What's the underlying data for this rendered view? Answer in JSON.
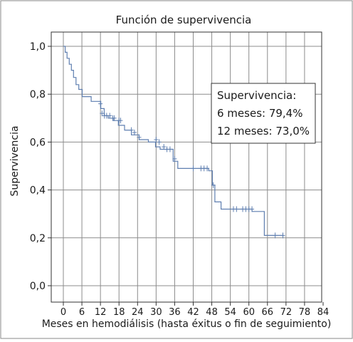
{
  "chart_data": {
    "type": "line",
    "title": "Función de supervivencia",
    "xlabel": "Meses en hemodiálisis (hasta éxitus o fin de seguimiento)",
    "ylabel": "Supervivencia",
    "xlim": [
      0,
      84
    ],
    "ylim": [
      0.0,
      1.0
    ],
    "x_ticks": [
      0,
      6,
      12,
      18,
      24,
      30,
      36,
      42,
      48,
      54,
      60,
      66,
      72,
      78,
      84
    ],
    "x_tick_labels": [
      "0",
      "6",
      "12",
      "18",
      "24",
      "30",
      "36",
      "42",
      "48",
      "54",
      "60",
      "66",
      "72",
      "78",
      "84"
    ],
    "y_ticks": [
      0.0,
      0.2,
      0.4,
      0.6,
      0.8,
      1.0
    ],
    "y_tick_labels": [
      "0,0",
      "0,2",
      "0,4",
      "0,6",
      "0,8",
      "1,0"
    ],
    "grid": true,
    "legend": "none",
    "series": [
      {
        "style": "step",
        "color": "#5f7fb0",
        "x": [
          0,
          0.6,
          1.2,
          1.9,
          2.6,
          3.3,
          4.1,
          5.0,
          6.1,
          9.0,
          12.1,
          13.2,
          14.5,
          16.1,
          17.8,
          19.8,
          22.0,
          24.5,
          27.5,
          29.8,
          31.3,
          35.5,
          37.0,
          42.0,
          47.0,
          48.2,
          49.0,
          51.0,
          56.5,
          60.5,
          61.0,
          65.0,
          66.1,
          71.0
        ],
        "y": [
          1.0,
          0.975,
          0.95,
          0.925,
          0.9,
          0.87,
          0.84,
          0.82,
          0.79,
          0.77,
          0.74,
          0.71,
          0.7,
          0.69,
          0.67,
          0.65,
          0.63,
          0.61,
          0.6,
          0.58,
          0.57,
          0.52,
          0.49,
          0.49,
          0.48,
          0.42,
          0.35,
          0.32,
          0.32,
          0.32,
          0.31,
          0.21,
          0.21,
          0.21
        ]
      }
    ],
    "censored": {
      "x": [
        12.0,
        12.5,
        13.3,
        14.0,
        15.0,
        16.0,
        16.5,
        18.0,
        18.5,
        22.0,
        23.0,
        24.5,
        30.0,
        31.0,
        32.5,
        33.5,
        34.5,
        36.0,
        42.0,
        44.5,
        45.5,
        46.5,
        48.5,
        55.0,
        56.0,
        58.0,
        59.0,
        60.0,
        61.0,
        68.5,
        71.0
      ],
      "y": [
        0.76,
        0.72,
        0.71,
        0.71,
        0.71,
        0.7,
        0.7,
        0.69,
        0.69,
        0.65,
        0.64,
        0.62,
        0.61,
        0.6,
        0.58,
        0.57,
        0.57,
        0.53,
        0.49,
        0.49,
        0.49,
        0.49,
        0.42,
        0.32,
        0.32,
        0.32,
        0.32,
        0.32,
        0.32,
        0.21,
        0.21
      ]
    },
    "annotation": {
      "lines": [
        "Supervivencia:",
        "6 meses: 79,4%",
        "12 meses: 73,0%"
      ]
    }
  }
}
